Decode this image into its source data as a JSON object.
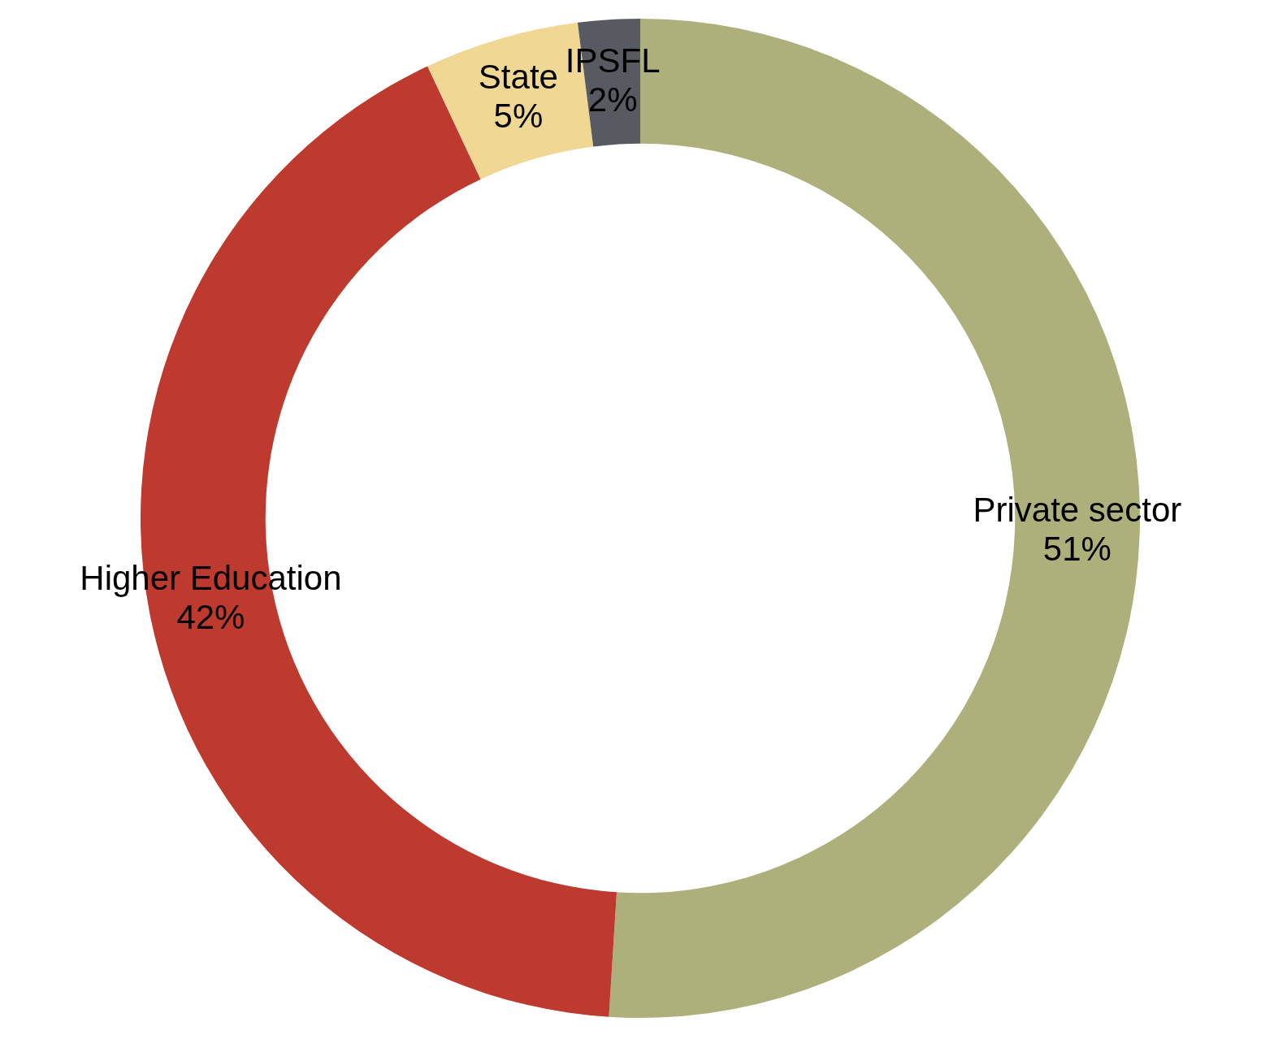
{
  "chart_data": {
    "type": "donut",
    "categories": [
      "Private sector",
      "Higher Education",
      "State",
      "IPSFL"
    ],
    "values": [
      51,
      42,
      5,
      2
    ],
    "value_labels": [
      "51%",
      "42%",
      "5%",
      "2%"
    ],
    "colors": [
      "#aeb07c",
      "#be392e",
      "#f0d794",
      "#575a60"
    ],
    "legend": false
  }
}
